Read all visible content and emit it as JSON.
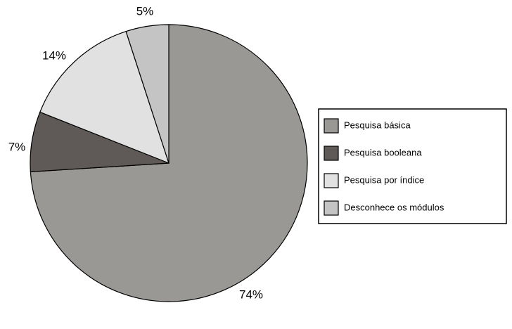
{
  "chart_data": {
    "type": "pie",
    "categories": [
      "Pesquisa básica",
      "Pesquisa booleana",
      "Pesquisa por índice",
      "Desconhece os módulos"
    ],
    "values": [
      74,
      7,
      14,
      5
    ],
    "value_labels": [
      "74%",
      "7%",
      "14%",
      "5%"
    ],
    "colors": [
      "#999894",
      "#5f5a58",
      "#e1e1e1",
      "#c4c4c4"
    ],
    "legend": "right"
  }
}
